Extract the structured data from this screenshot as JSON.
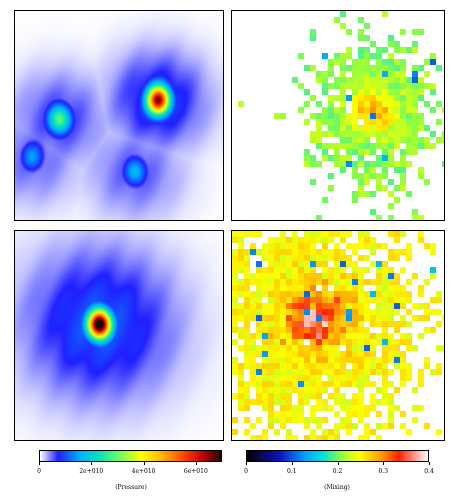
{
  "chart_data": [
    {
      "type": "heatmap",
      "panel": "top-left",
      "quantity": "Pressure",
      "blobs": [
        {
          "cx": 0.68,
          "cy": 0.42,
          "peak": 0.85
        },
        {
          "cx": 0.21,
          "cy": 0.51,
          "peak": 0.38
        },
        {
          "cx": 0.57,
          "cy": 0.76,
          "peak": 0.22
        },
        {
          "cx": 0.08,
          "cy": 0.69,
          "peak": 0.18
        }
      ]
    },
    {
      "type": "heatmap",
      "panel": "top-right",
      "quantity": "Mixing",
      "cloud_center": [
        0.66,
        0.48
      ],
      "cloud_spread": [
        0.14,
        0.18
      ],
      "typical_value": 0.21
    },
    {
      "type": "heatmap",
      "panel": "bottom-left",
      "quantity": "Pressure",
      "blobs": [
        {
          "cx": 0.4,
          "cy": 0.44,
          "peak": 1.0
        }
      ]
    },
    {
      "type": "heatmap",
      "panel": "bottom-right",
      "quantity": "Mixing",
      "cloud_center": [
        0.34,
        0.42
      ],
      "cloud_spread": [
        0.26,
        0.28
      ],
      "typical_value": 0.25,
      "hot_center": [
        0.4,
        0.42
      ],
      "hot_value": 0.35
    }
  ],
  "colorbars": {
    "pressure": {
      "label": "(Pressure)",
      "range": [
        0,
        70000000000.0
      ],
      "ticks": [
        {
          "label": "0",
          "value": 0
        },
        {
          "label": "2e+010",
          "value": 20000000000.0
        },
        {
          "label": "4e+010",
          "value": 40000000000.0
        },
        {
          "label": "6e+010",
          "value": 60000000000.0
        }
      ]
    },
    "mixing": {
      "label": "(Mixing)",
      "range": [
        0,
        0.4
      ],
      "ticks": [
        {
          "label": "0",
          "value": 0
        },
        {
          "label": "0.1",
          "value": 0.1
        },
        {
          "label": "0.2",
          "value": 0.2
        },
        {
          "label": "0.3",
          "value": 0.3
        },
        {
          "label": "0.4",
          "value": 0.4
        }
      ]
    }
  }
}
